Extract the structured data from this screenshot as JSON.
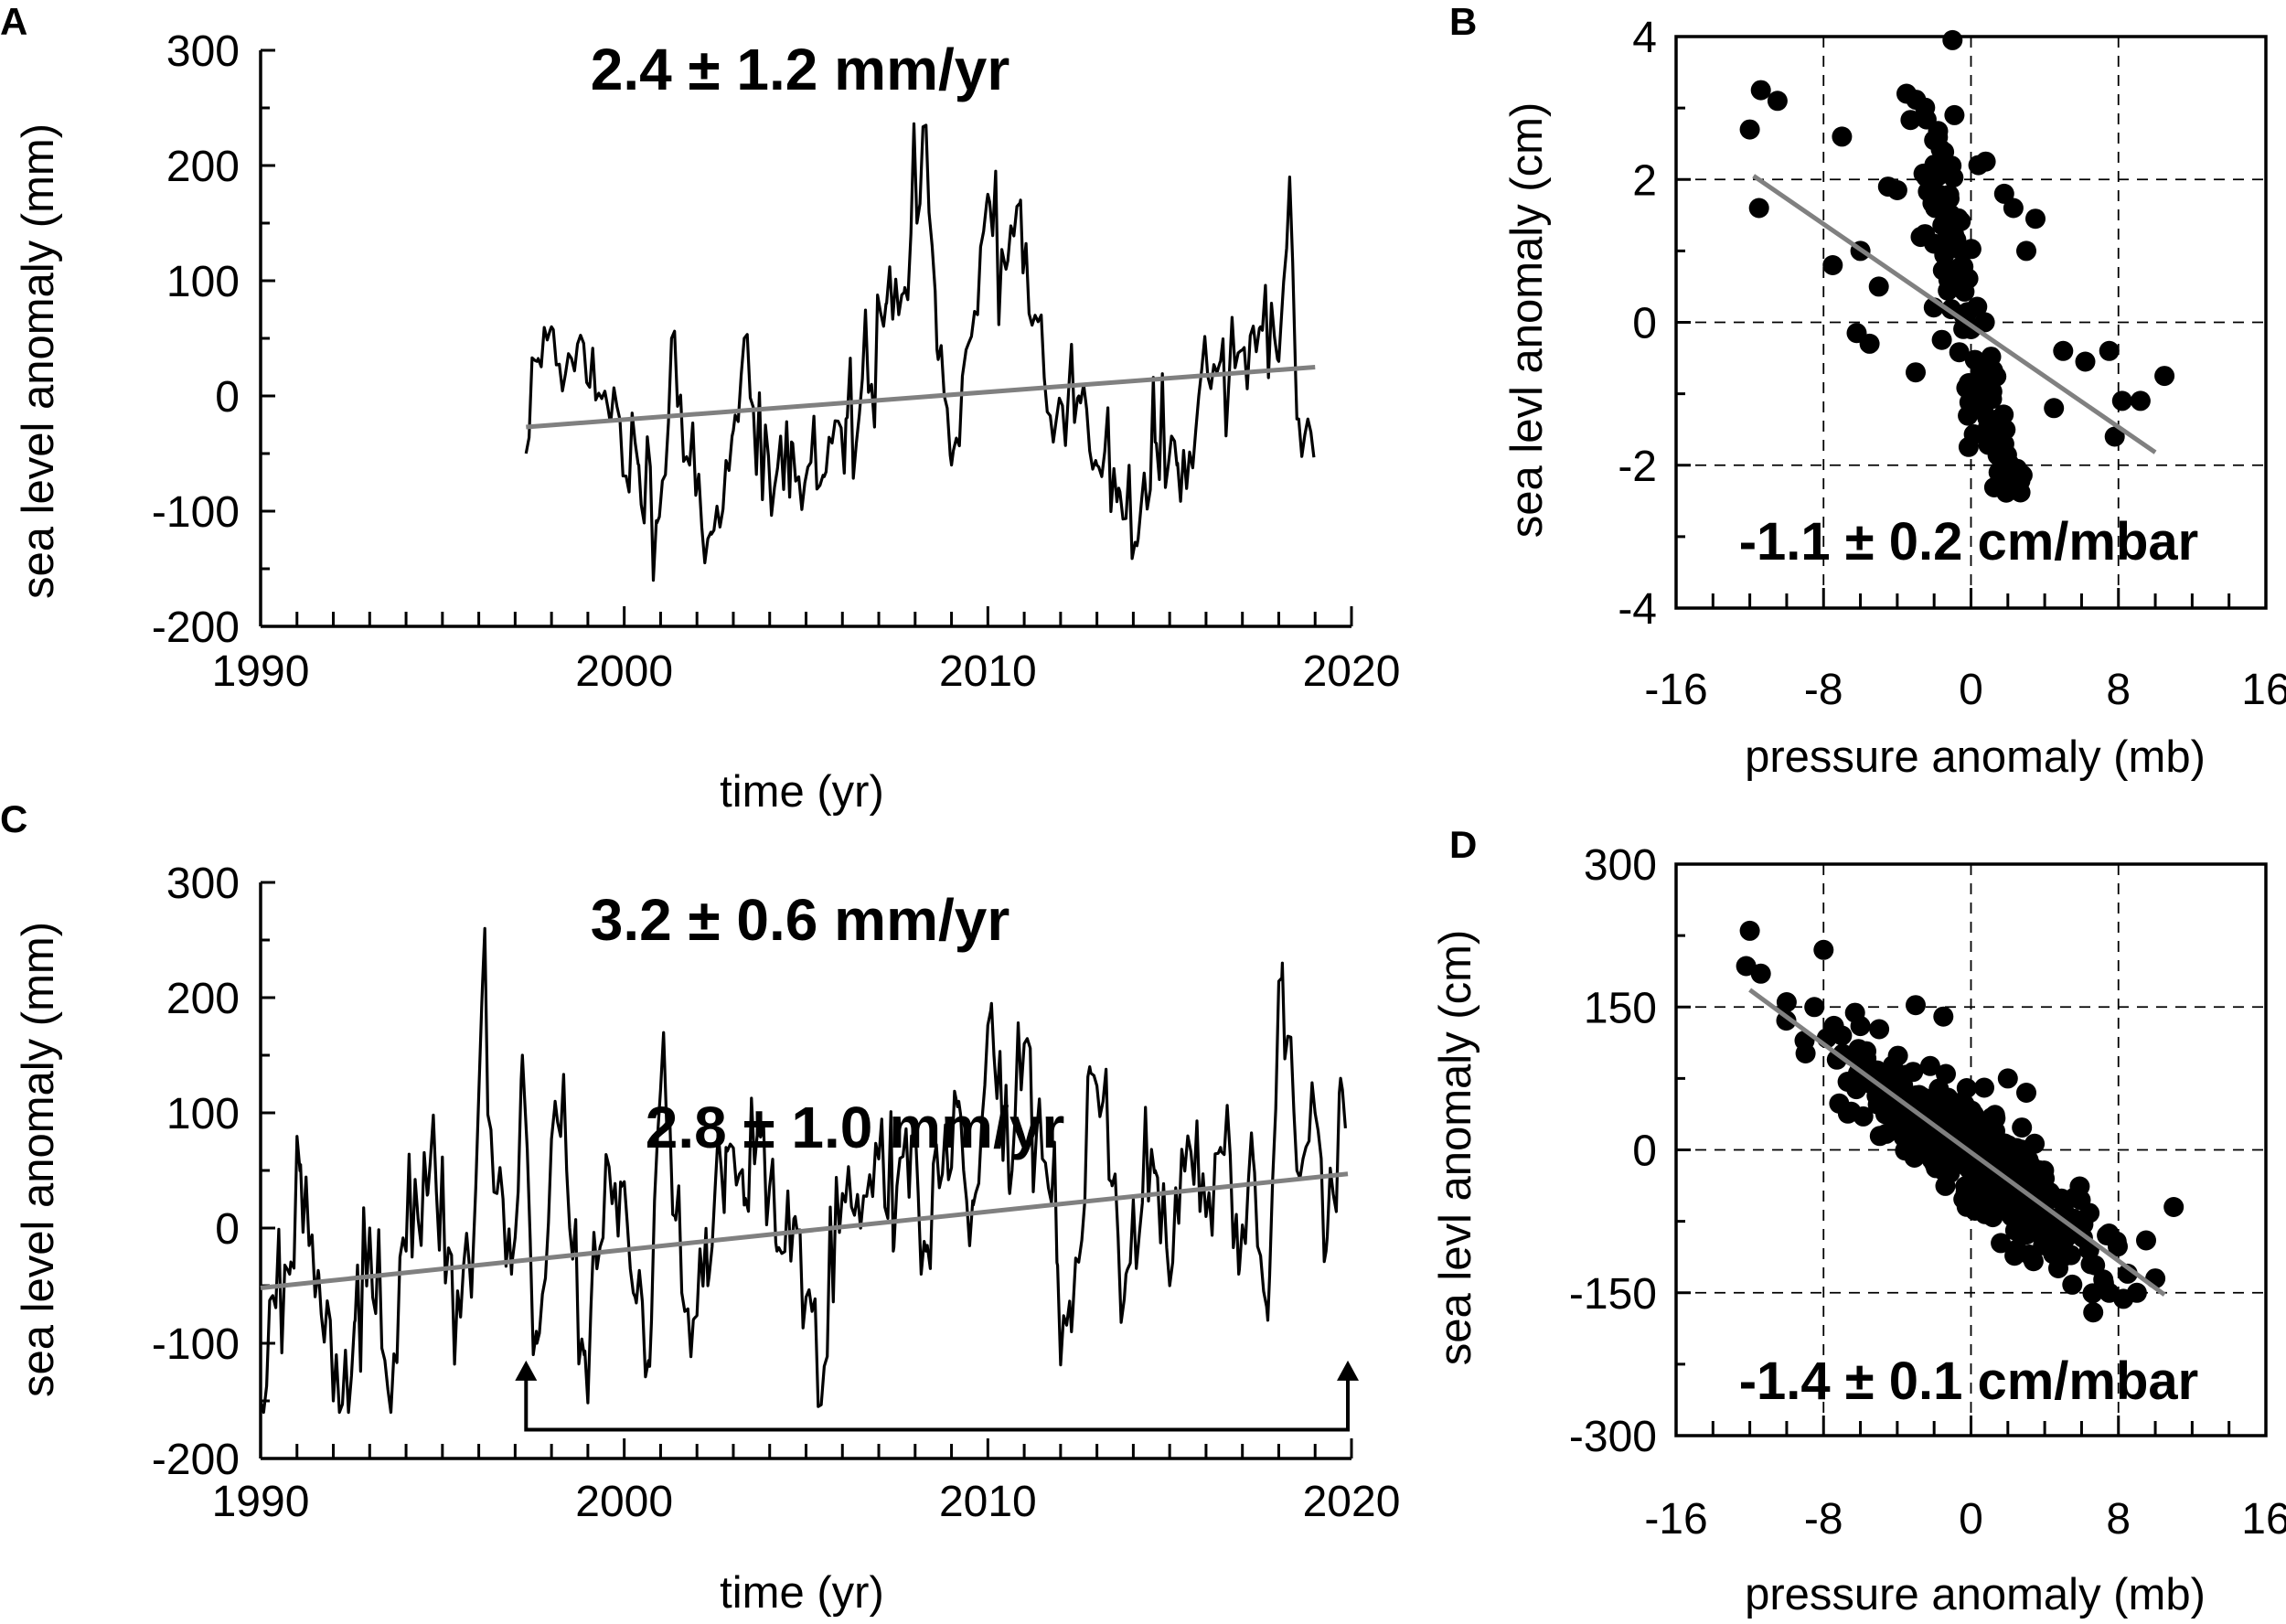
{
  "colors": {
    "series": "#000000",
    "trend": "#808080",
    "grid": "#000000"
  },
  "chart_data": [
    {
      "panel": "A",
      "type": "line",
      "xlabel": "time (yr)",
      "ylabel": "sea level anomaly (mm)",
      "xlim": [
        1990,
        2020
      ],
      "ylim": [
        -200,
        300
      ],
      "xticks": [
        1990,
        2000,
        2010,
        2020
      ],
      "yticks": [
        -200,
        -100,
        0,
        100,
        200,
        300
      ],
      "annotation": "2.4 ± 1.2 mm/yr",
      "series_span": [
        1997.3,
        2019.0
      ],
      "series_start": -50,
      "series_end": -60,
      "series_noise": 30,
      "seed": 11,
      "features": [
        [
          1997.6,
          30
        ],
        [
          1998.0,
          60
        ],
        [
          1998.5,
          35
        ],
        [
          1999.0,
          10
        ],
        [
          1999.6,
          -20
        ],
        [
          2000.4,
          -60
        ],
        [
          2000.9,
          -110
        ],
        [
          2001.3,
          50
        ],
        [
          2001.8,
          -60
        ],
        [
          2002.4,
          -120
        ],
        [
          2003.0,
          -30
        ],
        [
          2003.3,
          50
        ],
        [
          2003.8,
          -90
        ],
        [
          2004.6,
          -40
        ],
        [
          2005.5,
          -70
        ],
        [
          2006.1,
          -20
        ],
        [
          2006.8,
          10
        ],
        [
          2007.2,
          80
        ],
        [
          2007.7,
          90
        ],
        [
          2008.3,
          235
        ],
        [
          2008.6,
          40
        ],
        [
          2009.0,
          -60
        ],
        [
          2009.4,
          40
        ],
        [
          2010.0,
          175
        ],
        [
          2010.5,
          110
        ],
        [
          2010.9,
          170
        ],
        [
          2011.3,
          70
        ],
        [
          2011.8,
          -40
        ],
        [
          2012.5,
          0
        ],
        [
          2013.0,
          -60
        ],
        [
          2013.6,
          -80
        ],
        [
          2014.1,
          -130
        ],
        [
          2014.6,
          -40
        ],
        [
          2015.2,
          -60
        ],
        [
          2015.8,
          0
        ],
        [
          2016.4,
          30
        ],
        [
          2017.0,
          40
        ],
        [
          2017.5,
          60
        ],
        [
          2018.0,
          30
        ],
        [
          2018.3,
          190
        ],
        [
          2018.5,
          -20
        ],
        [
          2018.8,
          -20
        ]
      ],
      "trend": {
        "x": [
          1997.3,
          2019.0
        ],
        "y": [
          -27,
          25
        ]
      }
    },
    {
      "panel": "B",
      "type": "scatter",
      "xlabel": "pressure anomaly (mb)",
      "ylabel": "sea levl anomaly (cm)",
      "xlim": [
        -16,
        16
      ],
      "ylim": [
        -4,
        4
      ],
      "xticks": [
        -16,
        -8,
        0,
        8,
        16
      ],
      "yticks": [
        -4,
        -2,
        0,
        2,
        4
      ],
      "grid": "dashed",
      "annotation": "-1.1 ± 0.2 cm/mbar",
      "points": [
        [
          -12.0,
          2.7
        ],
        [
          -11.4,
          3.25
        ],
        [
          -10.5,
          3.1
        ],
        [
          -11.5,
          1.6
        ],
        [
          -7.0,
          2.6
        ],
        [
          -4.5,
          1.9
        ],
        [
          -4.0,
          1.85
        ],
        [
          -3.5,
          3.2
        ],
        [
          -1.0,
          3.95
        ],
        [
          -0.9,
          2.9
        ],
        [
          -2.0,
          2.55
        ],
        [
          0.4,
          2.2
        ],
        [
          0.8,
          2.25
        ],
        [
          1.8,
          1.8
        ],
        [
          2.3,
          1.6
        ],
        [
          3.5,
          1.45
        ],
        [
          6.2,
          -0.55
        ],
        [
          7.5,
          -0.4
        ],
        [
          8.2,
          -1.1
        ],
        [
          9.2,
          -1.1
        ],
        [
          10.5,
          -0.75
        ],
        [
          7.8,
          -1.6
        ],
        [
          1.5,
          -2.1
        ],
        [
          2.5,
          -2.05
        ],
        [
          -6.0,
          1.0
        ],
        [
          -7.5,
          0.8
        ],
        [
          -5.0,
          0.5
        ],
        [
          -6.2,
          -0.15
        ],
        [
          -5.5,
          -0.3
        ],
        [
          -3.0,
          -0.7
        ],
        [
          4.5,
          -1.2
        ],
        [
          5.0,
          -0.4
        ],
        [
          3.0,
          1.0
        ]
      ],
      "cloud": {
        "n": 200,
        "seed": 7,
        "x_sd": 2.8,
        "slope": -1.1,
        "intercept": -0.17,
        "y_sd": 0.65,
        "x_center": 0.0
      },
      "trend": {
        "x": [
          -11.8,
          10.0
        ],
        "y": [
          2.05,
          -1.82
        ]
      }
    },
    {
      "panel": "C",
      "type": "line",
      "xlabel": "time (yr)",
      "ylabel": "sea level anomaly (mm)",
      "xlim": [
        1990,
        2020
      ],
      "ylim": [
        -200,
        300
      ],
      "xticks": [
        1990,
        2000,
        2010,
        2020
      ],
      "yticks": [
        -200,
        -100,
        0,
        100,
        200,
        300
      ],
      "annotation": "3.2 ± 0.6 mm/yr",
      "annotation_secondary": "2.8 ± 1.0 mm/yr",
      "bracket": {
        "x": [
          1997.3,
          2019.9
        ],
        "y": -175,
        "arrow_top": -115
      },
      "series_span": [
        1990.0,
        2019.9
      ],
      "series_start": -150,
      "series_end": 90,
      "series_noise": 35,
      "seed": 23,
      "features": [
        [
          1990.3,
          -60
        ],
        [
          1990.8,
          -40
        ],
        [
          1991.1,
          55
        ],
        [
          1991.6,
          -40
        ],
        [
          1992.0,
          -150
        ],
        [
          1992.6,
          -80
        ],
        [
          1993.0,
          0
        ],
        [
          1993.5,
          -140
        ],
        [
          1994.0,
          -20
        ],
        [
          1994.6,
          30
        ],
        [
          1995.2,
          -20
        ],
        [
          1995.8,
          -60
        ],
        [
          1996.1,
          210
        ],
        [
          1996.5,
          30
        ],
        [
          1996.9,
          -40
        ],
        [
          1997.2,
          150
        ],
        [
          1997.6,
          -100
        ],
        [
          1998.1,
          110
        ],
        [
          1998.5,
          0
        ],
        [
          1998.9,
          -110
        ],
        [
          1999.4,
          -10
        ],
        [
          1999.9,
          40
        ],
        [
          2000.3,
          -60
        ],
        [
          2000.7,
          -120
        ],
        [
          2001.0,
          120
        ],
        [
          2001.4,
          10
        ],
        [
          2001.9,
          -80
        ],
        [
          2002.3,
          -50
        ],
        [
          2002.8,
          70
        ],
        [
          2003.3,
          20
        ],
        [
          2003.7,
          90
        ],
        [
          2004.2,
          -20
        ],
        [
          2004.7,
          10
        ],
        [
          2005.0,
          -60
        ],
        [
          2005.5,
          -120
        ],
        [
          2006.0,
          30
        ],
        [
          2006.5,
          0
        ],
        [
          2007.0,
          60
        ],
        [
          2007.4,
          -20
        ],
        [
          2007.9,
          80
        ],
        [
          2008.3,
          -20
        ],
        [
          2008.7,
          40
        ],
        [
          2009.2,
          110
        ],
        [
          2009.6,
          20
        ],
        [
          2010.1,
          195
        ],
        [
          2010.6,
          30
        ],
        [
          2011.0,
          160
        ],
        [
          2011.5,
          60
        ],
        [
          2011.9,
          -30
        ],
        [
          2012.3,
          -90
        ],
        [
          2012.8,
          140
        ],
        [
          2013.4,
          40
        ],
        [
          2013.8,
          -40
        ],
        [
          2014.6,
          50
        ],
        [
          2015.0,
          -50
        ],
        [
          2015.5,
          80
        ],
        [
          2016.0,
          10
        ],
        [
          2016.4,
          70
        ],
        [
          2016.9,
          -40
        ],
        [
          2017.3,
          60
        ],
        [
          2017.7,
          -80
        ],
        [
          2018.1,
          230
        ],
        [
          2018.5,
          50
        ],
        [
          2019.0,
          100
        ],
        [
          2019.3,
          -20
        ],
        [
          2019.7,
          130
        ]
      ],
      "trend": {
        "x": [
          1990.0,
          2019.9
        ],
        "y": [
          -52,
          47
        ]
      }
    },
    {
      "panel": "D",
      "type": "scatter",
      "xlabel": "pressure anomaly (mb)",
      "ylabel": "sea levl anomaly (cm)",
      "xlim": [
        -16,
        16
      ],
      "ylim": [
        -300,
        300
      ],
      "xticks": [
        -16,
        -8,
        0,
        8,
        16
      ],
      "yticks": [
        -300,
        -150,
        0,
        150,
        300
      ],
      "grid": "dashed",
      "annotation": "-1.4 ± 0.1 cm/mbar",
      "points": [
        [
          -12.0,
          230
        ],
        [
          -12.2,
          193
        ],
        [
          -11.4,
          185
        ],
        [
          -8.0,
          210
        ],
        [
          -10.0,
          155
        ],
        [
          -8.5,
          150
        ],
        [
          -6.0,
          130
        ],
        [
          -3.0,
          152
        ],
        [
          -1.5,
          140
        ],
        [
          -6.5,
          40
        ],
        [
          -5.0,
          60
        ],
        [
          -7.0,
          120
        ],
        [
          5.0,
          -80
        ],
        [
          6.5,
          -120
        ],
        [
          7.5,
          -150
        ],
        [
          8.5,
          -130
        ],
        [
          9.0,
          -150
        ],
        [
          10.0,
          -135
        ],
        [
          11.0,
          -60
        ],
        [
          9.5,
          -95
        ],
        [
          4.0,
          -30
        ],
        [
          2.0,
          75
        ],
        [
          3.0,
          60
        ]
      ],
      "cloud": {
        "n": 380,
        "seed": 5,
        "x_sd": 3.2,
        "slope": -14.2,
        "intercept": -5,
        "y_sd": 28,
        "x_center": 0.3
      },
      "trend": {
        "x": [
          -12.0,
          10.5
        ],
        "y": [
          168,
          -152
        ]
      }
    }
  ]
}
